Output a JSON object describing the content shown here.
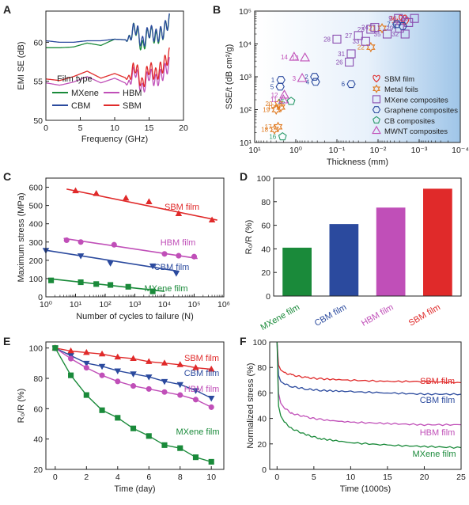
{
  "colors": {
    "green": "#1a8a3a",
    "blue": "#2b4a9e",
    "magenta": "#c04fb8",
    "red": "#e02a2a",
    "orange": "#e07a20",
    "purple": "#8a4db0",
    "teal": "#2a9a6a",
    "black": "#222222"
  },
  "chart_data": [
    {
      "panel": "A",
      "type": "line",
      "xlabel": "Frequency (GHz)",
      "ylabel": "EMI SE (dB)",
      "xlim": [
        0,
        20
      ],
      "ylim": [
        50,
        64
      ],
      "xticks": [
        "0",
        "5",
        "10",
        "15",
        "20"
      ],
      "yticks": [
        "50",
        "55",
        "60"
      ],
      "legend_title": "Film type",
      "series": [
        {
          "name": "MXene",
          "color": "green",
          "base": 59.6,
          "x": [
            0,
            2,
            4,
            6,
            8,
            10,
            12,
            13,
            14,
            15,
            16,
            17,
            18
          ],
          "y": [
            59.3,
            59.3,
            59.4,
            59.9,
            59.6,
            60.4,
            60.3,
            62.0,
            59.2,
            61.5,
            60.5,
            61.2,
            63.0
          ]
        },
        {
          "name": "CBM",
          "color": "blue",
          "base": 60.2,
          "x": [
            0,
            2,
            4,
            6,
            8,
            10,
            12,
            13,
            14,
            15,
            16,
            17,
            18
          ],
          "y": [
            60.2,
            60.0,
            60.0,
            60.2,
            60.2,
            60.4,
            60.3,
            62.0,
            59.8,
            61.5,
            60.8,
            61.3,
            63.0
          ]
        },
        {
          "name": "HBM",
          "color": "magenta",
          "base": 55.1,
          "x": [
            0,
            2,
            4,
            6,
            8,
            10,
            12,
            13,
            14,
            15,
            16,
            17,
            18
          ],
          "y": [
            54.8,
            54.5,
            54.9,
            55.6,
            54.8,
            55.4,
            54.6,
            56.5,
            53.8,
            56.0,
            55.0,
            56.0,
            57.3
          ]
        },
        {
          "name": "SBM",
          "color": "red",
          "base": 55.6,
          "x": [
            0,
            2,
            4,
            6,
            8,
            10,
            12,
            13,
            14,
            15,
            16,
            17,
            18
          ],
          "y": [
            55.3,
            55.1,
            55.6,
            56.3,
            55.4,
            56.0,
            55.3,
            57.0,
            54.5,
            56.8,
            55.8,
            57.0,
            58.5
          ]
        }
      ]
    },
    {
      "panel": "B",
      "type": "scatter",
      "xlabel": "Thickness (mm)",
      "ylabel": "SSE/t (dB cm²/g)",
      "xscale": "log-reversed",
      "yscale": "log",
      "xlim": [
        10,
        0.0001
      ],
      "ylim": [
        10,
        100000
      ],
      "xticks": [
        "10¹",
        "10⁰",
        "10⁻¹",
        "10⁻²",
        "10⁻³",
        "10⁻⁴"
      ],
      "yticks": [
        "10¹",
        "10²",
        "10³",
        "10⁴",
        "10⁵"
      ],
      "legend": [
        {
          "label": "SBM film",
          "marker": "heart",
          "color": "red"
        },
        {
          "label": "Metal foils",
          "marker": "star",
          "color": "orange"
        },
        {
          "label": "MXene composites",
          "marker": "square",
          "color": "purple"
        },
        {
          "label": "Graphene composites",
          "marker": "hexagon",
          "color": "blue"
        },
        {
          "label": "CB composites",
          "marker": "pentagon",
          "color": "teal"
        },
        {
          "label": "MWNT composites",
          "marker": "triangle",
          "color": "magenta"
        }
      ],
      "points": [
        {
          "id": "36",
          "marker": "heart",
          "x": 0.0025,
          "y": 60000
        },
        {
          "id": "34",
          "marker": "heart",
          "x": 0.0022,
          "y": 50000
        },
        {
          "id": "17",
          "marker": "star",
          "x": 2.7,
          "y": 30
        },
        {
          "id": "18",
          "marker": "star",
          "x": 3.3,
          "y": 25
        },
        {
          "id": "19",
          "marker": "star",
          "x": 3.0,
          "y": 100
        },
        {
          "id": "20",
          "marker": "star",
          "x": 2.6,
          "y": 150
        },
        {
          "id": "10",
          "marker": "star",
          "x": 2.3,
          "y": 120
        },
        {
          "id": "21",
          "marker": "star",
          "x": 0.008,
          "y": 30000
        },
        {
          "id": "22",
          "marker": "star",
          "x": 0.015,
          "y": 8000
        },
        {
          "id": "23",
          "marker": "square",
          "x": 0.015,
          "y": 28000
        },
        {
          "id": "24",
          "marker": "square",
          "x": 0.012,
          "y": 32000
        },
        {
          "id": "25",
          "marker": "square",
          "x": 0.0018,
          "y": 45000
        },
        {
          "id": "27",
          "marker": "square",
          "x": 0.03,
          "y": 18000
        },
        {
          "id": "28",
          "marker": "square",
          "x": 0.1,
          "y": 14000
        },
        {
          "id": "29",
          "marker": "square",
          "x": 0.003,
          "y": 30000
        },
        {
          "id": "30",
          "marker": "square",
          "x": 0.0013,
          "y": 60000
        },
        {
          "id": "31",
          "marker": "square",
          "x": 0.045,
          "y": 5000
        },
        {
          "id": "26",
          "marker": "square",
          "x": 0.05,
          "y": 2800
        },
        {
          "id": "32",
          "marker": "square",
          "x": 0.0022,
          "y": 20000
        },
        {
          "id": "33",
          "marker": "square",
          "x": 0.02,
          "y": 12000
        },
        {
          "id": "35",
          "marker": "square",
          "x": 0.006,
          "y": 20000
        },
        {
          "id": "9",
          "marker": "square",
          "x": 0.0032,
          "y": 60000
        },
        {
          "id": "1",
          "marker": "hexagon",
          "x": 2.3,
          "y": 800
        },
        {
          "id": "2",
          "marker": "hexagon",
          "x": 0.35,
          "y": 1000
        },
        {
          "id": "4",
          "marker": "hexagon",
          "x": 0.33,
          "y": 700
        },
        {
          "id": "5",
          "marker": "hexagon",
          "x": 2.4,
          "y": 500
        },
        {
          "id": "6",
          "marker": "hexagon",
          "x": 0.045,
          "y": 600
        },
        {
          "id": "7",
          "marker": "hexagon",
          "x": 0.0035,
          "y": 40000
        },
        {
          "id": "8",
          "marker": "hexagon",
          "x": 0.0025,
          "y": 35000
        },
        {
          "id": "15",
          "marker": "pentagon",
          "x": 1.3,
          "y": 180
        },
        {
          "id": "16",
          "marker": "pentagon",
          "x": 2.1,
          "y": 15
        },
        {
          "id": "3",
          "marker": "triangle",
          "x": 0.7,
          "y": 900
        },
        {
          "id": "11",
          "marker": "triangle",
          "x": 2.0,
          "y": 200
        },
        {
          "id": "12",
          "marker": "triangle",
          "x": 1.9,
          "y": 280
        },
        {
          "id": "13",
          "marker": "triangle",
          "x": 0.6,
          "y": 3800
        },
        {
          "id": "14",
          "marker": "triangle",
          "x": 1.1,
          "y": 4000
        }
      ]
    },
    {
      "panel": "C",
      "type": "scatter",
      "xlabel": "Number of cycles to failure (N)",
      "ylabel": "Maximum stress (MPa)",
      "xscale": "log",
      "xlim": [
        1,
        1000000
      ],
      "ylim": [
        0,
        650
      ],
      "xticks": [
        "10⁰",
        "10¹",
        "10²",
        "10³",
        "10⁴",
        "10⁵",
        "10⁶"
      ],
      "yticks": [
        "0",
        "100",
        "200",
        "300",
        "400",
        "500",
        "600"
      ],
      "series": [
        {
          "name": "SBM film",
          "color": "red",
          "marker": "triangle-up",
          "x": [
            10,
            50,
            500,
            3000,
            30000,
            400000
          ],
          "y": [
            580,
            565,
            540,
            520,
            455,
            420
          ],
          "fit": [
            [
              5,
              590
            ],
            [
              600000,
              420
            ]
          ]
        },
        {
          "name": "HBM film",
          "color": "magenta",
          "marker": "circle",
          "x": [
            5,
            15,
            200,
            10000,
            30000,
            100000
          ],
          "y": [
            310,
            300,
            285,
            235,
            225,
            220
          ],
          "fit": [
            [
              4,
              320
            ],
            [
              130000,
              210
            ]
          ]
        },
        {
          "name": "CBM film",
          "color": "blue",
          "marker": "triangle-down",
          "x": [
            1,
            15,
            150,
            4000,
            25000
          ],
          "y": [
            255,
            225,
            185,
            170,
            130
          ],
          "fit": [
            [
              1,
              255
            ],
            [
              30000,
              140
            ]
          ]
        },
        {
          "name": "MXene film",
          "color": "green",
          "marker": "square",
          "x": [
            1.5,
            15,
            50,
            150,
            600,
            4000
          ],
          "y": [
            90,
            80,
            70,
            65,
            55,
            30
          ],
          "fit": [
            [
              1.2,
              100
            ],
            [
              10000,
              30
            ]
          ]
        }
      ]
    },
    {
      "panel": "D",
      "type": "bar",
      "ylabel": "R₀/R (%)",
      "ylim": [
        0,
        100
      ],
      "yticks": [
        "0",
        "20",
        "40",
        "60",
        "80",
        "100"
      ],
      "categories": [
        "MXene film",
        "CBM film",
        "HBM film",
        "SBM film"
      ],
      "values": [
        41,
        61,
        75,
        91
      ],
      "bar_colors": [
        "green",
        "blue",
        "magenta",
        "red"
      ]
    },
    {
      "panel": "E",
      "type": "line",
      "xlabel": "Time (day)",
      "ylabel": "R₀/R (%)",
      "xlim": [
        0,
        10
      ],
      "ylim": [
        20,
        100
      ],
      "xticks": [
        "0",
        "2",
        "4",
        "6",
        "8",
        "10"
      ],
      "yticks": [
        "20",
        "40",
        "60",
        "80",
        "100"
      ],
      "series": [
        {
          "name": "SBM film",
          "color": "red",
          "marker": "triangle-up",
          "x": [
            0,
            1,
            2,
            3,
            4,
            5,
            6,
            7,
            8,
            9,
            10
          ],
          "y": [
            100,
            98,
            97,
            96,
            94,
            93,
            91,
            90,
            89,
            87,
            86
          ]
        },
        {
          "name": "CBM film",
          "color": "blue",
          "marker": "triangle-down",
          "x": [
            0,
            1,
            2,
            3,
            4,
            5,
            6,
            7,
            8,
            9,
            10
          ],
          "y": [
            100,
            95,
            90,
            88,
            85,
            83,
            81,
            78,
            76,
            72,
            67
          ]
        },
        {
          "name": "HBM film",
          "color": "magenta",
          "marker": "circle",
          "x": [
            0,
            1,
            2,
            3,
            4,
            5,
            6,
            7,
            8,
            9,
            10
          ],
          "y": [
            100,
            93,
            87,
            82,
            78,
            75,
            73,
            71,
            69,
            66,
            61
          ]
        },
        {
          "name": "MXene film",
          "color": "green",
          "marker": "square",
          "x": [
            0,
            1,
            2,
            3,
            4,
            5,
            6,
            7,
            8,
            9,
            10
          ],
          "y": [
            100,
            82,
            69,
            59,
            54,
            47,
            42,
            36,
            34,
            28,
            25
          ]
        }
      ]
    },
    {
      "panel": "F",
      "type": "line",
      "xlabel": "Time (1000s)",
      "ylabel": "Normalized stress (%)",
      "xlim": [
        -1,
        25
      ],
      "ylim": [
        0,
        100
      ],
      "xticks": [
        "0",
        "5",
        "10",
        "15",
        "20",
        "25"
      ],
      "yticks": [
        "0",
        "20",
        "40",
        "60",
        "80",
        "100"
      ],
      "series": [
        {
          "name": "SBM film",
          "color": "red",
          "x": [
            0,
            0.2,
            0.5,
            1,
            2,
            4,
            6,
            10,
            15,
            20,
            25
          ],
          "y": [
            100,
            82,
            78,
            76,
            74,
            72,
            71,
            70,
            69,
            69,
            68
          ]
        },
        {
          "name": "CBM film",
          "color": "blue",
          "x": [
            0,
            0.2,
            0.5,
            1,
            2,
            4,
            6,
            10,
            15,
            20,
            25
          ],
          "y": [
            100,
            74,
            69,
            67,
            65,
            63,
            62,
            61,
            60,
            59,
            59
          ]
        },
        {
          "name": "HBM film",
          "color": "magenta",
          "x": [
            0,
            0.2,
            0.5,
            1,
            2,
            4,
            6,
            10,
            15,
            20,
            25
          ],
          "y": [
            100,
            60,
            52,
            48,
            44,
            41,
            39,
            37,
            36,
            35,
            35
          ]
        },
        {
          "name": "MXene film",
          "color": "green",
          "x": [
            0,
            0.2,
            0.5,
            1,
            2,
            4,
            6,
            10,
            15,
            20,
            25
          ],
          "y": [
            100,
            50,
            42,
            37,
            32,
            27,
            24,
            21,
            19,
            18,
            17
          ]
        }
      ]
    }
  ]
}
